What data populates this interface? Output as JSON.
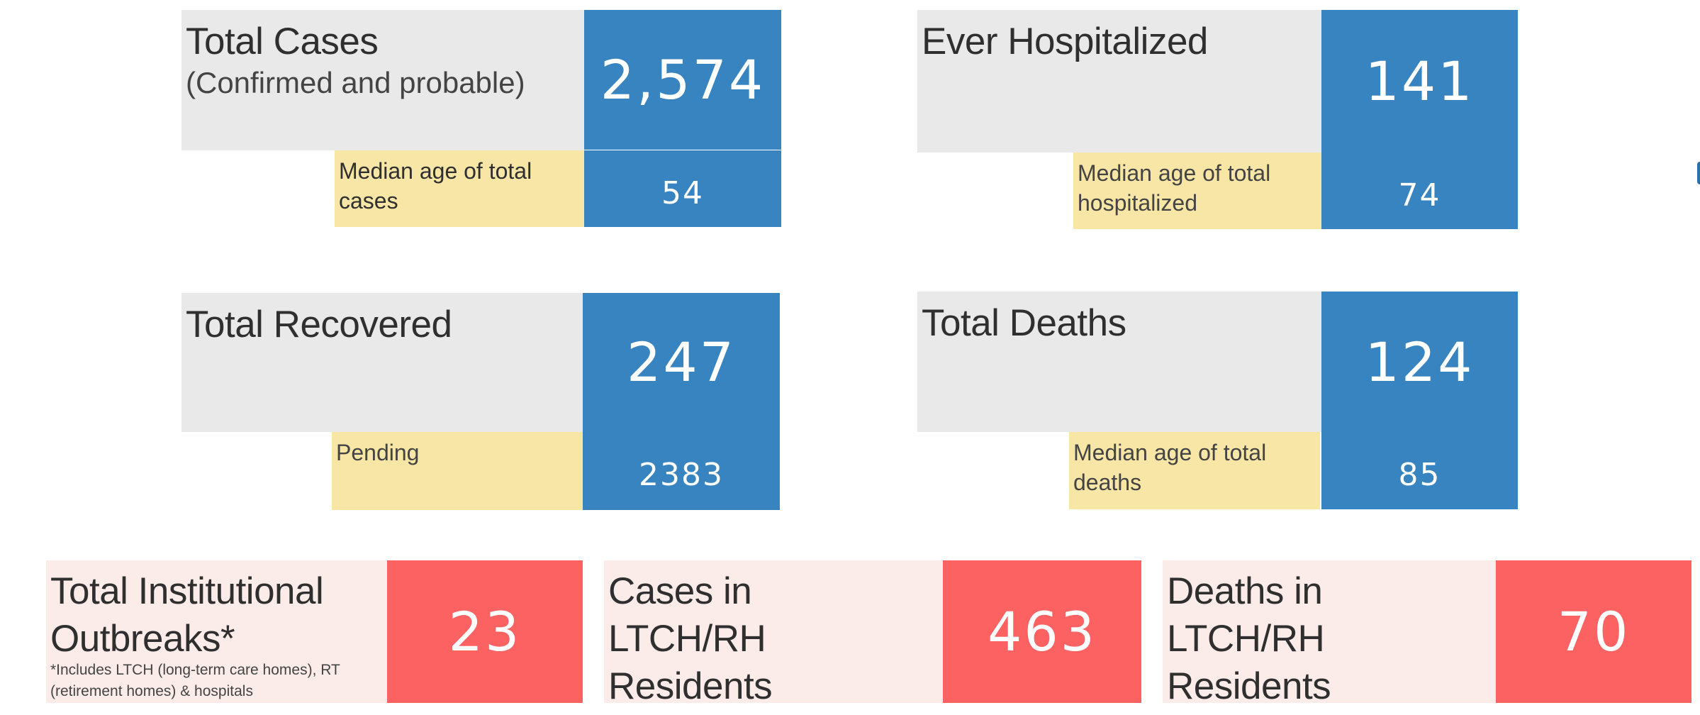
{
  "colors": {
    "label_bg": "#e9e9e9",
    "value_bg": "#3884c1",
    "sub_label_bg": "#f8e6a6",
    "outbreak_label_bg": "#fbecea",
    "outbreak_value_bg": "#fd6263"
  },
  "total_cases": {
    "title": "Total Cases",
    "subtitle": "(Confirmed and probable)",
    "value": "2,574",
    "sub_label": "Median age of total cases",
    "sub_value": "54"
  },
  "ever_hospitalized": {
    "title": "Ever Hospitalized",
    "value": "141",
    "sub_label": "Median age of total hospitalized",
    "sub_value": "74"
  },
  "total_recovered": {
    "title": "Total Recovered",
    "value": "247",
    "sub_label": "Pending",
    "sub_value": "2383"
  },
  "total_deaths": {
    "title": "Total Deaths",
    "value": "124",
    "sub_label": "Median age of total deaths",
    "sub_value": "85"
  },
  "institutional_outbreaks": {
    "title": "Total Institutional Outbreaks*",
    "footnote": "*Includes LTCH (long-term care homes), RT (retirement homes) & hospitals",
    "value": "23"
  },
  "ltch_cases": {
    "title": "Cases in LTCH/RH Residents",
    "value": "463"
  },
  "ltch_deaths": {
    "title": "Deaths in LTCH/RH Residents",
    "value": "70"
  }
}
